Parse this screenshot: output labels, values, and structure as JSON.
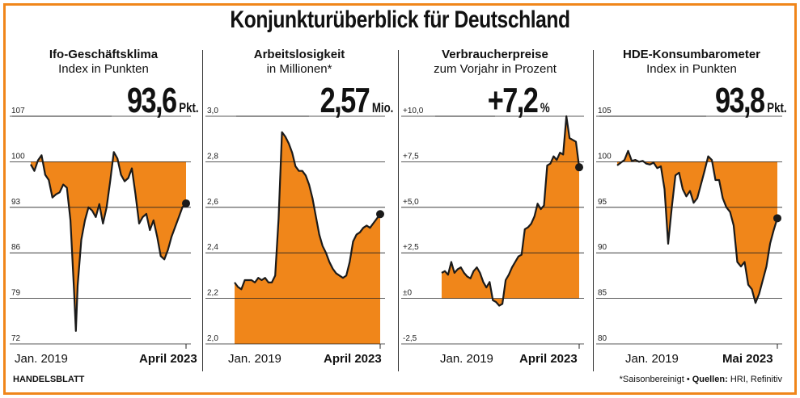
{
  "title": "Konjunkturüberblick für Deutschland",
  "footer": {
    "source": "HANDELSBLATT",
    "note": "*Saisonbereinigt",
    "sources_label": "Quellen:",
    "sources_text": "HRI, Refinitiv"
  },
  "colors": {
    "fill": "#f0861a",
    "frame": "#f0861a",
    "line": "#1a1a1a"
  },
  "chart_data": [
    {
      "type": "area",
      "title": "Ifo-Geschäftsklima",
      "subtitle": "Index in Punkten",
      "value": "93,6",
      "unit": "Pkt.",
      "yticks": [
        "72",
        "79",
        "86",
        "93",
        "100",
        "107"
      ],
      "ylim": [
        72,
        107
      ],
      "baseline": 100,
      "x_start": "Jan. 2019",
      "x_end": "April 2023",
      "x": [
        2019.0,
        2019.1,
        2019.2,
        2019.3,
        2019.4,
        2019.5,
        2019.6,
        2019.7,
        2019.8,
        2019.9,
        2020.0,
        2020.1,
        2020.2,
        2020.25,
        2020.3,
        2020.4,
        2020.5,
        2020.6,
        2020.7,
        2020.8,
        2020.9,
        2021.0,
        2021.1,
        2021.2,
        2021.3,
        2021.4,
        2021.5,
        2021.6,
        2021.7,
        2021.8,
        2021.9,
        2022.0,
        2022.1,
        2022.2,
        2022.3,
        2022.4,
        2022.5,
        2022.6,
        2022.7,
        2022.8,
        2022.9,
        2023.0,
        2023.1,
        2023.2,
        2023.3
      ],
      "values": [
        99.6,
        98.6,
        100.2,
        101.0,
        98.0,
        97.2,
        94.5,
        95.0,
        95.3,
        96.5,
        96.0,
        91.0,
        80.0,
        74.0,
        81.0,
        88.0,
        91.0,
        93.0,
        92.5,
        91.5,
        93.5,
        90.5,
        93.0,
        97.0,
        101.5,
        100.5,
        98.0,
        97.0,
        97.5,
        99.0,
        95.0,
        90.5,
        91.5,
        92.0,
        89.5,
        91.0,
        88.5,
        85.5,
        85.0,
        86.5,
        88.5,
        90.0,
        91.5,
        93.0,
        93.6
      ]
    },
    {
      "type": "area",
      "title": "Arbeitslosigkeit",
      "subtitle": "in Millionen*",
      "value": "2,57",
      "unit": "Mio.",
      "yticks": [
        "2,0",
        "2,2",
        "2,4",
        "2,6",
        "2,8",
        "3,0"
      ],
      "ylim": [
        2.0,
        3.0
      ],
      "baseline": 2.0,
      "x_start": "Jan. 2019",
      "x_end": "April 2023",
      "x": [
        2019.0,
        2019.1,
        2019.2,
        2019.3,
        2019.4,
        2019.5,
        2019.6,
        2019.7,
        2019.8,
        2019.9,
        2020.0,
        2020.1,
        2020.2,
        2020.3,
        2020.4,
        2020.5,
        2020.6,
        2020.7,
        2020.8,
        2020.9,
        2021.0,
        2021.1,
        2021.2,
        2021.3,
        2021.4,
        2021.5,
        2021.6,
        2021.7,
        2021.8,
        2021.9,
        2022.0,
        2022.1,
        2022.2,
        2022.3,
        2022.4,
        2022.5,
        2022.6,
        2022.7,
        2022.8,
        2022.9,
        2023.0,
        2023.1,
        2023.2,
        2023.3
      ],
      "values": [
        2.27,
        2.25,
        2.24,
        2.28,
        2.28,
        2.28,
        2.27,
        2.29,
        2.28,
        2.29,
        2.27,
        2.27,
        2.3,
        2.55,
        2.93,
        2.91,
        2.88,
        2.84,
        2.78,
        2.76,
        2.76,
        2.74,
        2.7,
        2.64,
        2.56,
        2.48,
        2.43,
        2.4,
        2.36,
        2.33,
        2.31,
        2.3,
        2.29,
        2.3,
        2.36,
        2.45,
        2.48,
        2.49,
        2.51,
        2.52,
        2.51,
        2.53,
        2.55,
        2.57
      ]
    },
    {
      "type": "area",
      "title": "Verbraucherpreise",
      "subtitle": "zum Vorjahr in Prozent",
      "value": "+7,2",
      "unit": "%",
      "yticks": [
        "-2,5",
        "±0",
        "+2,5",
        "+5,0",
        "+7,5",
        "+10,0"
      ],
      "ylim": [
        -2.5,
        10.0
      ],
      "baseline": 0,
      "x_start": "Jan. 2019",
      "x_end": "April 2023",
      "x": [
        2019.0,
        2019.1,
        2019.2,
        2019.3,
        2019.4,
        2019.5,
        2019.6,
        2019.7,
        2019.8,
        2019.9,
        2020.0,
        2020.1,
        2020.2,
        2020.3,
        2020.4,
        2020.5,
        2020.6,
        2020.7,
        2020.8,
        2020.9,
        2021.0,
        2021.1,
        2021.2,
        2021.3,
        2021.4,
        2021.5,
        2021.6,
        2021.7,
        2021.8,
        2021.9,
        2022.0,
        2022.1,
        2022.2,
        2022.3,
        2022.4,
        2022.5,
        2022.6,
        2022.7,
        2022.8,
        2022.9,
        2023.0,
        2023.1,
        2023.2,
        2023.3
      ],
      "values": [
        1.4,
        1.5,
        1.3,
        2.0,
        1.4,
        1.6,
        1.7,
        1.4,
        1.2,
        1.1,
        1.5,
        1.7,
        1.4,
        0.9,
        0.6,
        0.9,
        -0.1,
        -0.2,
        -0.4,
        -0.3,
        1.0,
        1.3,
        1.7,
        2.0,
        2.3,
        2.4,
        3.8,
        3.9,
        4.1,
        4.5,
        5.2,
        4.9,
        5.1,
        7.3,
        7.4,
        7.8,
        7.6,
        8.0,
        7.9,
        10.0,
        8.8,
        8.7,
        8.6,
        7.2
      ]
    },
    {
      "type": "area",
      "title": "HDE-Konsumbarometer",
      "subtitle": "Index in Punkten",
      "value": "93,8",
      "unit": "Pkt.",
      "yticks": [
        "80",
        "85",
        "90",
        "95",
        "100",
        "105"
      ],
      "ylim": [
        80,
        105
      ],
      "baseline": 100,
      "x_start": "Jan. 2019",
      "x_end": "Mai 2023",
      "x": [
        2019.0,
        2019.1,
        2019.2,
        2019.3,
        2019.4,
        2019.5,
        2019.6,
        2019.7,
        2019.8,
        2019.9,
        2020.0,
        2020.1,
        2020.2,
        2020.3,
        2020.4,
        2020.5,
        2020.6,
        2020.7,
        2020.8,
        2020.9,
        2021.0,
        2021.1,
        2021.2,
        2021.3,
        2021.4,
        2021.5,
        2021.6,
        2021.7,
        2021.8,
        2021.9,
        2022.0,
        2022.1,
        2022.2,
        2022.3,
        2022.4,
        2022.5,
        2022.6,
        2022.7,
        2022.8,
        2022.9,
        2023.0,
        2023.1,
        2023.2,
        2023.3,
        2023.4
      ],
      "values": [
        99.6,
        99.9,
        100.2,
        101.2,
        100.1,
        100.2,
        100.0,
        100.1,
        99.8,
        99.7,
        99.9,
        99.3,
        99.5,
        97.0,
        91.0,
        95.0,
        98.5,
        98.8,
        97.0,
        96.2,
        96.8,
        95.5,
        96.0,
        97.5,
        99.0,
        100.6,
        100.2,
        98.0,
        98.0,
        96.0,
        95.0,
        94.5,
        93.0,
        89.0,
        88.5,
        89.0,
        86.5,
        86.0,
        84.5,
        85.5,
        87.0,
        88.5,
        91.0,
        92.5,
        93.8
      ]
    }
  ]
}
